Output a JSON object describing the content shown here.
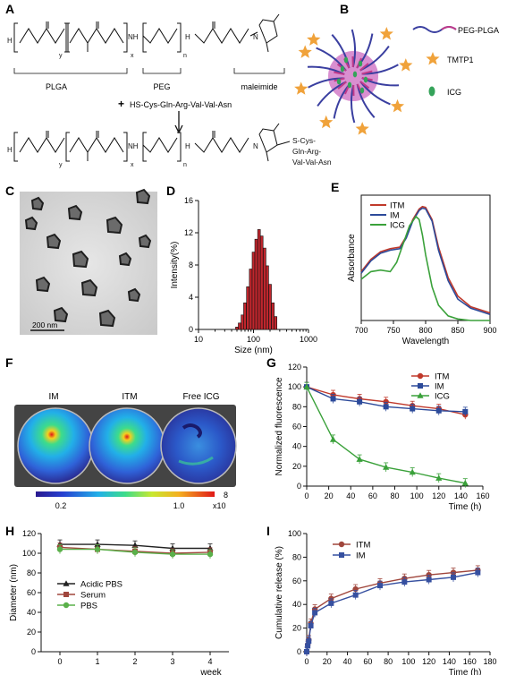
{
  "panels": {
    "A": {
      "letter": "A",
      "top_labels": {
        "y": "y",
        "x": "x",
        "n": "n",
        "h": "H",
        "o": "O",
        "nh": "NH",
        "n_mal": "N"
      },
      "segment_labels": [
        "PLGA",
        "PEG",
        "maleimide"
      ],
      "reagent": "HS-Cys-Gln-Arg-Val-Val-Asn",
      "product_peptide": [
        "S-Cys-",
        "Gln-Arg-",
        "Val-Val-Asn"
      ]
    },
    "B": {
      "letter": "B",
      "legend": [
        "PEG-PLGA",
        "TMTP1",
        "ICG"
      ],
      "colors": {
        "peg": "#3a3fa0",
        "plga": "#c03a8a",
        "core": "#d98fd0",
        "tmtp1": "#f0a23a",
        "icg": "#35a35a"
      }
    },
    "C": {
      "letter": "C",
      "scalebar": "200 nm"
    },
    "D": {
      "letter": "D",
      "chart_data": {
        "type": "bar",
        "xlabel": "Size (nm)",
        "ylabel": "Intensity(%)",
        "xscale": "log",
        "xlim": [
          10,
          1000
        ],
        "ylim": [
          0,
          16
        ],
        "yticks": [
          0,
          4,
          8,
          12,
          16
        ],
        "xticks": [
          10,
          100,
          1000
        ],
        "x": [
          50,
          56,
          63,
          70,
          79,
          89,
          100,
          112,
          126,
          141,
          159,
          178,
          200,
          225,
          252
        ],
        "values": [
          0.3,
          0.8,
          1.8,
          3.3,
          5.3,
          7.5,
          9.6,
          11.2,
          12.4,
          11.6,
          10.1,
          7.9,
          5.6,
          3.3,
          1.6
        ],
        "bar_color": "#c0262d"
      }
    },
    "E": {
      "letter": "E",
      "chart_data": {
        "type": "line",
        "xlabel": "Wavelength",
        "ylabel": "Absorbance",
        "xlim": [
          700,
          900
        ],
        "xticks": [
          700,
          750,
          800,
          850,
          900
        ],
        "series": [
          {
            "name": "ITM",
            "color": "#c0392b",
            "x": [
              700,
              715,
              730,
              745,
              760,
              770,
              780,
              790,
              795,
              800,
              810,
              820,
              835,
              850,
              870,
              900
            ],
            "values": [
              0.32,
              0.4,
              0.45,
              0.47,
              0.48,
              0.55,
              0.66,
              0.73,
              0.745,
              0.74,
              0.66,
              0.48,
              0.28,
              0.16,
              0.09,
              0.05
            ]
          },
          {
            "name": "IM",
            "color": "#2c4a9a",
            "x": [
              700,
              715,
              730,
              745,
              760,
              770,
              780,
              790,
              795,
              800,
              810,
              820,
              835,
              850,
              870,
              900
            ],
            "values": [
              0.31,
              0.39,
              0.44,
              0.46,
              0.47,
              0.54,
              0.65,
              0.72,
              0.735,
              0.73,
              0.65,
              0.46,
              0.26,
              0.14,
              0.08,
              0.04
            ]
          },
          {
            "name": "ICG",
            "color": "#3aa13a",
            "x": [
              700,
              715,
              730,
              745,
              755,
              765,
              775,
              785,
              790,
              795,
              800,
              810,
              820,
              835,
              850,
              870,
              900
            ],
            "values": [
              0.27,
              0.32,
              0.33,
              0.32,
              0.38,
              0.5,
              0.62,
              0.68,
              0.66,
              0.56,
              0.43,
              0.22,
              0.1,
              0.03,
              0.01,
              0.0,
              0.0
            ]
          }
        ]
      }
    },
    "F": {
      "letter": "F",
      "well_labels": [
        "IM",
        "ITM",
        "Free  ICG"
      ],
      "colorbar_ticks": [
        "0.2",
        "1.0"
      ],
      "colorbar_exp": "8",
      "colorbar_mult": "x10"
    },
    "G": {
      "letter": "G",
      "chart_data": {
        "type": "line",
        "xlabel": "Time (h)",
        "ylabel": "Normalized fluorescence",
        "xlim": [
          0,
          160
        ],
        "ylim": [
          0,
          120
        ],
        "xticks": [
          0,
          20,
          40,
          60,
          80,
          100,
          120,
          140,
          160
        ],
        "yticks": [
          0,
          20,
          40,
          60,
          80,
          100,
          120
        ],
        "series": [
          {
            "name": "ITM",
            "color": "#c0392b",
            "marker": "circle",
            "x": [
              0,
              24,
              48,
              72,
              96,
              120,
              144
            ],
            "values": [
              100,
              92,
              88,
              85,
              81,
              78,
              72
            ]
          },
          {
            "name": "IM",
            "color": "#2c4a9a",
            "marker": "square",
            "x": [
              0,
              24,
              48,
              72,
              96,
              120,
              144
            ],
            "values": [
              100,
              88,
              85,
              80,
              78,
              76,
              75
            ]
          },
          {
            "name": "ICG",
            "color": "#3aa13a",
            "marker": "triangle",
            "x": [
              0,
              24,
              48,
              72,
              96,
              120,
              144
            ],
            "values": [
              100,
              47,
              27,
              19,
              14,
              8,
              3
            ]
          }
        ]
      }
    },
    "H": {
      "letter": "H",
      "chart_data": {
        "type": "line",
        "xlabel": "week",
        "ylabel": "Diameter  (nm)",
        "xlim": [
          -0.5,
          4.5
        ],
        "ylim": [
          0,
          120
        ],
        "xticks": [
          0,
          1,
          2,
          3,
          4
        ],
        "yticks": [
          0,
          20,
          40,
          60,
          80,
          100,
          120
        ],
        "series": [
          {
            "name": "Acidic PBS",
            "color": "#222222",
            "marker": "triangle",
            "x": [
              0,
              1,
              2,
              3,
              4
            ],
            "values": [
              109,
              109,
              108,
              105,
              105
            ]
          },
          {
            "name": "Serum",
            "color": "#a0463c",
            "marker": "square",
            "x": [
              0,
              1,
              2,
              3,
              4
            ],
            "values": [
              106,
              104,
              102,
              100,
              101
            ]
          },
          {
            "name": "PBS",
            "color": "#5ab04a",
            "marker": "circle",
            "x": [
              0,
              1,
              2,
              3,
              4
            ],
            "values": [
              104,
              104,
              101,
              99,
              99
            ]
          }
        ]
      }
    },
    "I": {
      "letter": "I",
      "chart_data": {
        "type": "line",
        "xlabel": "Time (h)",
        "ylabel": "Cumulative release  (%)",
        "xlim": [
          0,
          180
        ],
        "ylim": [
          0,
          100
        ],
        "xticks": [
          0,
          20,
          40,
          60,
          80,
          100,
          120,
          140,
          160,
          180
        ],
        "yticks": [
          0,
          20,
          40,
          60,
          80,
          100
        ],
        "series": [
          {
            "name": "ITM",
            "color": "#a0463c",
            "marker": "circle",
            "x": [
              0,
              1,
              2,
              4,
              8,
              24,
              48,
              72,
              96,
              120,
              144,
              168
            ],
            "values": [
              0,
              6,
              10,
              24,
              36,
              45,
              53,
              58,
              62,
              65,
              67,
              69
            ]
          },
          {
            "name": "IM",
            "color": "#3650a0",
            "marker": "square",
            "x": [
              0,
              1,
              2,
              4,
              8,
              24,
              48,
              72,
              96,
              120,
              144,
              168
            ],
            "values": [
              0,
              5,
              9,
              22,
              33,
              41,
              48,
              56,
              59,
              61,
              63,
              67
            ]
          }
        ]
      }
    }
  }
}
